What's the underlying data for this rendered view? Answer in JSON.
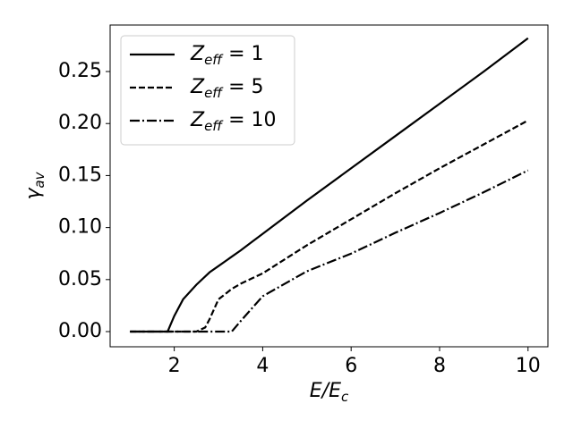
{
  "chart_data": {
    "type": "line",
    "xlabel": "E/E_c",
    "ylabel": "γ_av",
    "x": [
      1,
      1.5,
      1.85,
      1.9,
      2,
      2.2,
      2.5,
      2.7,
      2.8,
      3,
      3.3,
      3.5,
      3.75,
      4,
      5,
      6,
      7,
      8,
      9,
      10
    ],
    "series": [
      {
        "name": "Z_eff = 1",
        "color": "#000000",
        "linestyle": "solid",
        "values": [
          0,
          0,
          0,
          0.005,
          0.015,
          0.031,
          0.045,
          0.053,
          0.057,
          0.063,
          0.072,
          0.078,
          0.086,
          0.094,
          0.126,
          0.157,
          0.188,
          0.219,
          0.25,
          0.282
        ]
      },
      {
        "name": "Z_eff = 5",
        "color": "#000000",
        "linestyle": "dashed",
        "values": [
          0,
          0,
          0,
          0,
          0,
          0,
          0,
          0.004,
          0.012,
          0.031,
          0.041,
          0.046,
          0.051,
          0.056,
          0.083,
          0.108,
          0.133,
          0.157,
          0.18,
          0.203
        ]
      },
      {
        "name": "Z_eff = 10",
        "color": "#000000",
        "linestyle": "dashdot",
        "values": [
          0,
          0,
          0,
          0,
          0,
          0,
          0,
          0,
          0,
          0,
          0,
          0.01,
          0.022,
          0.034,
          0.058,
          0.075,
          0.095,
          0.114,
          0.134,
          0.155
        ]
      }
    ],
    "xlim": [
      0.55,
      10.45
    ],
    "ylim": [
      -0.0146,
      0.2947
    ],
    "xticks": [
      2,
      4,
      6,
      8,
      10
    ],
    "yticks": [
      {
        "value": 0,
        "label": "0.00"
      },
      {
        "value": 0.05,
        "label": "0.05"
      },
      {
        "value": 0.1,
        "label": "0.10"
      },
      {
        "value": 0.15,
        "label": "0.15"
      },
      {
        "value": 0.2,
        "label": "0.20"
      },
      {
        "value": 0.25,
        "label": "0.25"
      }
    ],
    "legend": "upper left",
    "grid": false
  }
}
